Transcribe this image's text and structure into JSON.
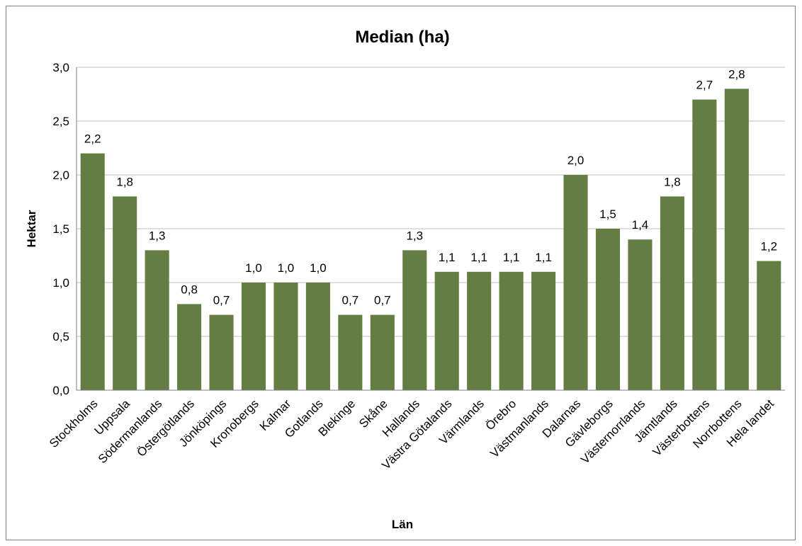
{
  "chart_data": {
    "type": "bar",
    "title": "Median (ha)",
    "xlabel": "Län",
    "ylabel": "Hektar",
    "ylim": [
      0,
      3.0
    ],
    "yticks": [
      "0,0",
      "0,5",
      "1,0",
      "1,5",
      "2,0",
      "2,5",
      "3,0"
    ],
    "grid": true,
    "bar_color": "#647d43",
    "categories": [
      "Stockholms",
      "Uppsala",
      "Södermanlands",
      "Östergötlands",
      "Jönköpings",
      "Kronobergs",
      "Kalmar",
      "Gotlands",
      "Blekinge",
      "Skåne",
      "Hallands",
      "Västra Götalands",
      "Värmlands",
      "Örebro",
      "Västmanlands",
      "Dalarnas",
      "Gävleborgs",
      "Västernorrlands",
      "Jämtlands",
      "Västerbottens",
      "Norrbottens",
      "Hela landet"
    ],
    "values": [
      2.2,
      1.8,
      1.3,
      0.8,
      0.7,
      1.0,
      1.0,
      1.0,
      0.7,
      0.7,
      1.3,
      1.1,
      1.1,
      1.1,
      1.1,
      2.0,
      1.5,
      1.4,
      1.8,
      2.7,
      2.8,
      1.2
    ],
    "data_labels": [
      "2,2",
      "1,8",
      "1,3",
      "0,8",
      "0,7",
      "1,0",
      "1,0",
      "1,0",
      "0,7",
      "0,7",
      "1,3",
      "1,1",
      "1,1",
      "1,1",
      "1,1",
      "2,0",
      "1,5",
      "1,4",
      "1,8",
      "2,7",
      "2,8",
      "1,2"
    ]
  }
}
